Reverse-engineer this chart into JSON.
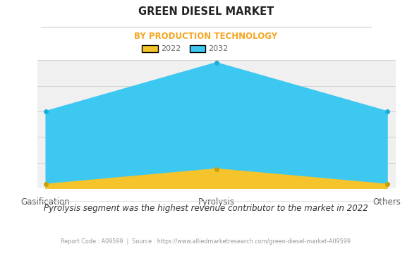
{
  "title": "GREEN DIESEL MARKET",
  "subtitle": "BY PRODUCTION TECHNOLOGY",
  "categories": [
    "Gasification",
    "Pyrolysis",
    "Others"
  ],
  "series_2022": [
    0.3,
    1.5,
    0.3
  ],
  "series_2032": [
    6.0,
    9.8,
    6.0
  ],
  "color_2022": "#F5C42C",
  "color_2032": "#3DC8F2",
  "title_color": "#222222",
  "subtitle_color": "#F5A623",
  "bg_color": "#ffffff",
  "plot_bg_color": "#f0f0f0",
  "footer_text": "Pyrolysis segment was the highest revenue contributor to the market in 2022",
  "report_text": "Report Code : A09599  |  Source : https://www.alliedmarketresearch.com/green-diesel-market-A09599",
  "ylim": [
    0,
    10
  ],
  "grid_color": "#cccccc",
  "marker_color_2022": "#C8A000",
  "marker_color_2032": "#1AAEDD",
  "title_sep_color": "#cccccc",
  "xtick_color": "#555555",
  "footer_color": "#333333",
  "report_color": "#999999"
}
